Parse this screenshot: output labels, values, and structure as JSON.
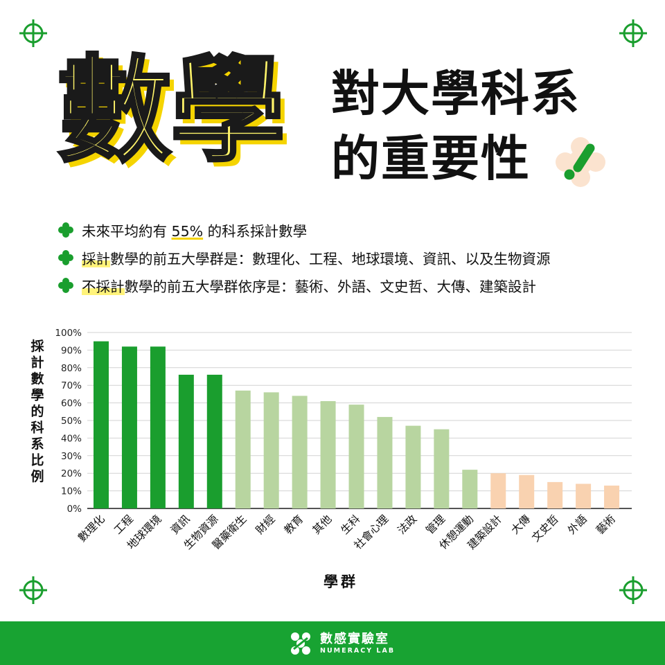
{
  "header": {
    "big_title": "數學",
    "subtitle_line1": "對大學科系",
    "subtitle_line2": "的重要性"
  },
  "bullets": [
    {
      "parts": [
        {
          "text": "未來平均約有 ",
          "style": "plain"
        },
        {
          "text": "55%",
          "style": "underline"
        },
        {
          "text": " 的科系採計數學",
          "style": "plain"
        }
      ]
    },
    {
      "parts": [
        {
          "text": "採計",
          "style": "highlight"
        },
        {
          "text": "數學的前五大學群是：數理化、工程、地球環境、資訊、以及生物資源",
          "style": "plain"
        }
      ]
    },
    {
      "parts": [
        {
          "text": "不採計",
          "style": "highlight"
        },
        {
          "text": "數學的前五大學群依序是：藝術、外語、文史哲、大傳、建築設計",
          "style": "plain"
        }
      ]
    }
  ],
  "chart_data": {
    "type": "bar",
    "title": "",
    "xlabel": "學群",
    "ylabel": "採計數學的科系比例",
    "ylim": [
      0,
      100
    ],
    "yticks": [
      "0%",
      "10%",
      "20%",
      "30%",
      "40%",
      "50%",
      "60%",
      "70%",
      "80%",
      "90%",
      "100%"
    ],
    "grid": true,
    "categories": [
      "數理化",
      "工程",
      "地球環境",
      "資訊",
      "生物資源",
      "醫藥衛生",
      "財經",
      "教育",
      "其他",
      "生科",
      "社會心理",
      "法政",
      "管理",
      "休憩運動",
      "建築設計",
      "大傳",
      "文史哲",
      "外語",
      "藝術"
    ],
    "values": [
      95,
      92,
      92,
      76,
      76,
      67,
      66,
      64,
      61,
      59,
      52,
      47,
      45,
      22,
      20,
      19,
      15,
      14,
      13
    ],
    "colors": [
      "#1a9e2e",
      "#1a9e2e",
      "#1a9e2e",
      "#1a9e2e",
      "#1a9e2e",
      "#b8d5a0",
      "#b8d5a0",
      "#b8d5a0",
      "#b8d5a0",
      "#b8d5a0",
      "#b8d5a0",
      "#b8d5a0",
      "#b8d5a0",
      "#b8d5a0",
      "#f9d2b0",
      "#f9d2b0",
      "#f9d2b0",
      "#f9d2b0",
      "#f9d2b0"
    ]
  },
  "footer": {
    "brand_cn": "數感實驗室",
    "brand_en": "NUMERACY LAB"
  },
  "colors": {
    "green": "#18a332",
    "yellow": "#fff46a",
    "yellow_shadow": "#f5d400"
  }
}
